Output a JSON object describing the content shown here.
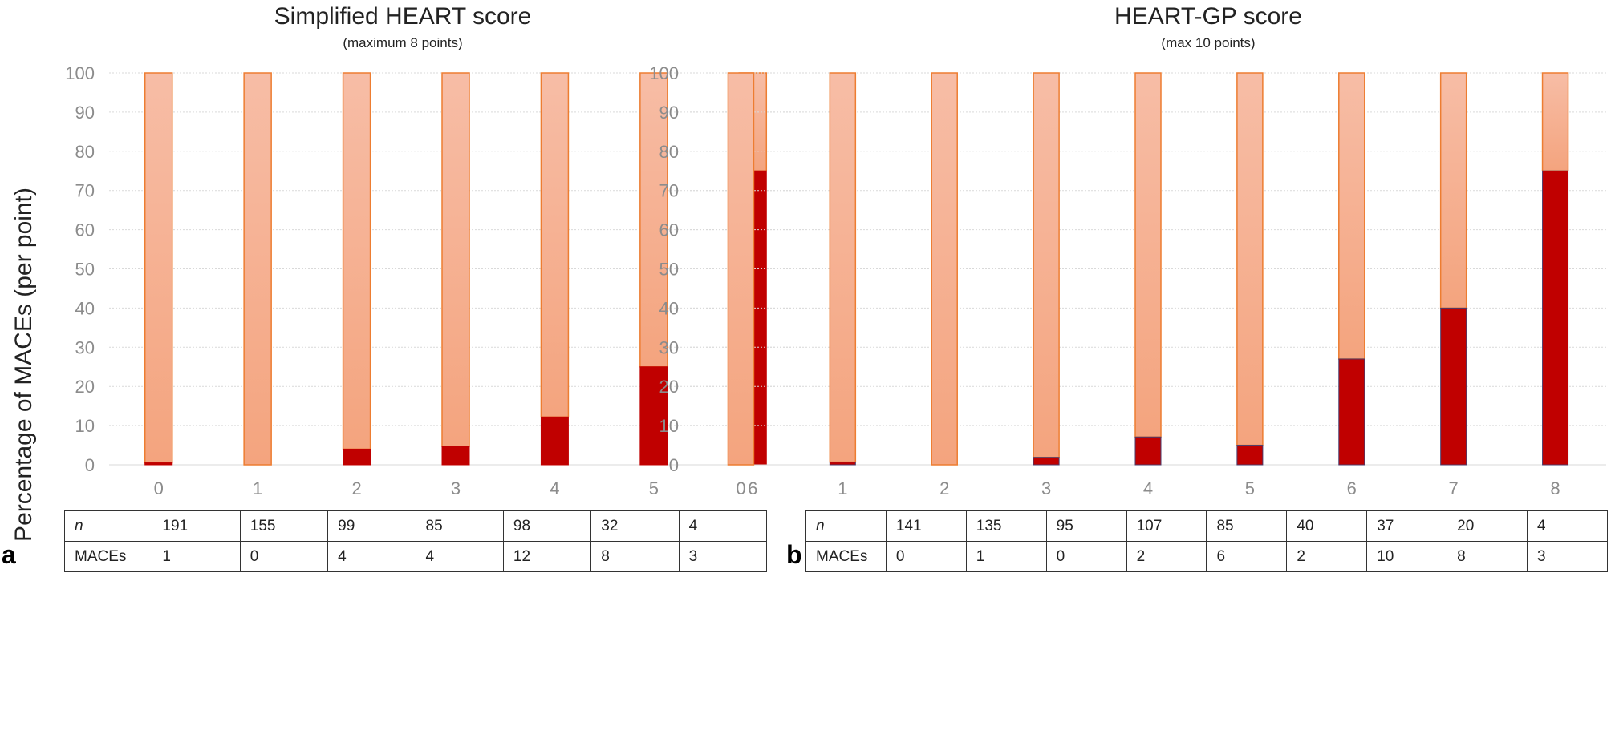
{
  "figure": {
    "ylabel": "Percentage of MACEs (per point)",
    "panels": [
      {
        "letter": "a",
        "title": "Simplified HEART score",
        "subtitle": "(maximum  8 points)",
        "table": {
          "row_labels": [
            "n",
            "MACEs"
          ],
          "n": [
            "191",
            "155",
            "99",
            "85",
            "98",
            "32",
            "4"
          ],
          "maces": [
            "1",
            "0",
            "4",
            "4",
            "12",
            "8",
            "3"
          ]
        }
      },
      {
        "letter": "b",
        "title": "HEART-GP score",
        "subtitle": "(max 10 points)",
        "table": {
          "row_labels": [
            "n",
            "MACEs"
          ],
          "n": [
            "141",
            "135",
            "95",
            "107",
            "85",
            "40",
            "37",
            "20",
            "4"
          ],
          "maces": [
            "0",
            "1",
            "0",
            "2",
            "6",
            "2",
            "10",
            "8",
            "3"
          ]
        }
      }
    ]
  },
  "colors": {
    "mace": "#c00000",
    "no_mace_top": "#f7bda6",
    "no_mace_bottom": "#f4a47e",
    "bar_outline": "#ed7d31",
    "gridline": "#d9d9d9",
    "tick_label": "#8c8c8c"
  },
  "chart_data": [
    {
      "type": "bar",
      "stacked": true,
      "title": "Simplified HEART score",
      "subtitle": "(maximum  8 points)",
      "xlabel": "",
      "ylabel": "Percentage of MACEs (per point)",
      "categories": [
        "0",
        "1",
        "2",
        "3",
        "4",
        "5",
        "6"
      ],
      "series": [
        {
          "role": "mace",
          "values": [
            0.5,
            0,
            4,
            4.7,
            12.2,
            25,
            75
          ]
        },
        {
          "role": "no_mace",
          "values": [
            99.5,
            100,
            96,
            95.3,
            87.8,
            75,
            25
          ]
        }
      ],
      "ylim": [
        0,
        100
      ],
      "yticks": [
        "0",
        "10",
        "20",
        "30",
        "40",
        "50",
        "60",
        "70",
        "80",
        "90",
        "100"
      ],
      "grid": true,
      "legend": "none"
    },
    {
      "type": "bar",
      "stacked": true,
      "title": "HEART-GP score",
      "subtitle": "(max 10 points)",
      "xlabel": "",
      "ylabel": "Percentage of MACEs (per point)",
      "categories": [
        "0",
        "1",
        "2",
        "3",
        "4",
        "5",
        "6",
        "7",
        "8"
      ],
      "series": [
        {
          "role": "mace",
          "values": [
            0,
            0.7,
            0,
            1.9,
            7.1,
            5,
            27,
            40,
            75
          ]
        },
        {
          "role": "no_mace",
          "values": [
            100,
            99.3,
            100,
            98.1,
            92.9,
            95,
            73,
            60,
            25
          ]
        }
      ],
      "ylim": [
        0,
        100
      ],
      "yticks": [
        "0",
        "10",
        "20",
        "30",
        "40",
        "50",
        "60",
        "70",
        "80",
        "90",
        "100"
      ],
      "grid": true,
      "legend": "none"
    }
  ]
}
